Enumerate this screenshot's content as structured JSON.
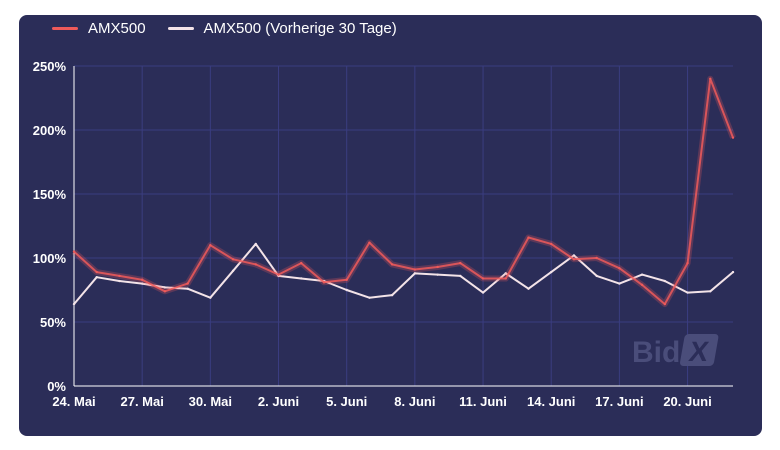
{
  "colors": {
    "background": "#2b2d58",
    "grid": "#3a3d80",
    "series_current": "#ee5a5a",
    "series_previous": "#f3e3e8",
    "watermark": "#4a4d7a"
  },
  "watermark": {
    "text": "Bid",
    "mark": "X"
  },
  "chart_data": {
    "type": "line",
    "title": "",
    "xlabel": "",
    "ylabel": "",
    "ylim": [
      0,
      250
    ],
    "y_unit": "%",
    "y_ticks": [
      "0%",
      "50%",
      "100%",
      "150%",
      "200%",
      "250%"
    ],
    "x": [
      "24. Mai",
      "25. Mai",
      "26. Mai",
      "27. Mai",
      "28. Mai",
      "29. Mai",
      "30. Mai",
      "31. Mai",
      "1. Juni",
      "2. Juni",
      "3. Juni",
      "4. Juni",
      "5. Juni",
      "6. Juni",
      "7. Juni",
      "8. Juni",
      "9. Juni",
      "10. Juni",
      "11. Juni",
      "12. Juni",
      "13. Juni",
      "14. Juni",
      "15. Juni",
      "16. Juni",
      "17. Juni",
      "18. Juni",
      "19. Juni",
      "20. Juni",
      "21. Juni",
      "22. Juni"
    ],
    "x_tick_labels": [
      "24. Mai",
      "27. Mai",
      "30. Mai",
      "2. Juni",
      "5. Juni",
      "8. Juni",
      "11. Juni",
      "14. Juni",
      "17. Juni",
      "20. Juni"
    ],
    "x_tick_indices": [
      0,
      3,
      6,
      9,
      12,
      15,
      18,
      21,
      24,
      27
    ],
    "grid": true,
    "legend": "top-left",
    "series": [
      {
        "name": "AMX500",
        "color": "#ee5a5a",
        "values": [
          105,
          89,
          86,
          83,
          74,
          80,
          110,
          99,
          95,
          87,
          96,
          81,
          83,
          112,
          95,
          91,
          93,
          96,
          84,
          84,
          116,
          111,
          99,
          100,
          92,
          79,
          64,
          96,
          240,
          194
        ]
      },
      {
        "name": "AMX500 (Vorherige 30 Tage)",
        "color": "#f3e3e8",
        "values": [
          64,
          85,
          82,
          80,
          77,
          76,
          69,
          90,
          111,
          86,
          84,
          82,
          75,
          69,
          71,
          88,
          87,
          86,
          73,
          88,
          76,
          89,
          102,
          86,
          80,
          87,
          82,
          73,
          74,
          89
        ]
      }
    ]
  }
}
